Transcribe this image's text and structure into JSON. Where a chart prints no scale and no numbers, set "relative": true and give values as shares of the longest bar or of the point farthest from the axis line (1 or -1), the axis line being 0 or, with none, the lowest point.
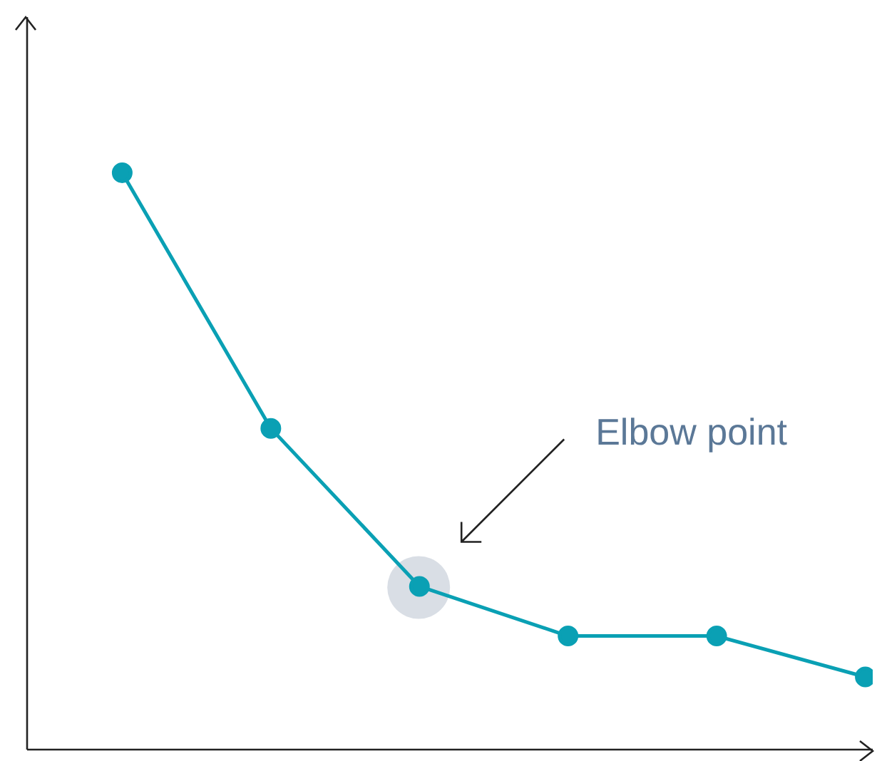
{
  "chart_data": {
    "type": "line",
    "relative": true,
    "categories": [
      null,
      null,
      null,
      null,
      null,
      null
    ],
    "series": [
      {
        "color": "#0aa0b4",
        "values": [
          1,
          0.557,
          0.283,
          0.197,
          0.197,
          0.126
        ]
      }
    ],
    "marker": "circle",
    "line_style": "solid",
    "annotations": [
      "Elbow point"
    ]
  }
}
